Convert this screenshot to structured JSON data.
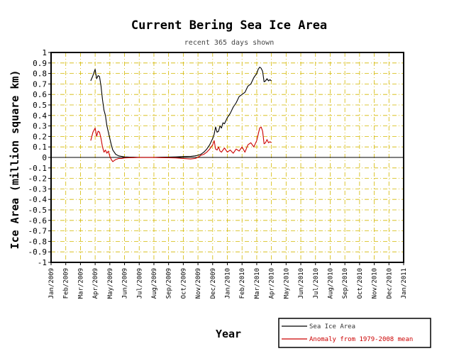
{
  "chart_data": {
    "type": "line",
    "title": "Current Bering Sea Ice Area",
    "subtitle": "recent 365 days shown",
    "xlabel": "Year",
    "ylabel": "Ice Area (million square km)",
    "ylim": [
      -1,
      1
    ],
    "y_ticks": [
      "1",
      "0.9",
      "0.8",
      "0.7",
      "0.6",
      "0.5",
      "0.4",
      "0.3",
      "0.2",
      "0.1",
      "0",
      "-0.1",
      "-0.2",
      "-0.3",
      "-0.4",
      "-0.5",
      "-0.6",
      "-0.7",
      "-0.8",
      "-0.9",
      "-1"
    ],
    "x_range_months": [
      0,
      24
    ],
    "x_ticks": [
      "Jan/2009",
      "Feb/2009",
      "Mar/2009",
      "Apr/2009",
      "May/2009",
      "Jun/2009",
      "Jul/2009",
      "Aug/2009",
      "Sep/2009",
      "Oct/2009",
      "Nov/2009",
      "Dec/2009",
      "Jan/2010",
      "Feb/2010",
      "Mar/2010",
      "Apr/2010",
      "May/2010",
      "Jun/2010",
      "Jul/2010",
      "Aug/2010",
      "Sep/2010",
      "Oct/2010",
      "Nov/2010",
      "Dec/2010",
      "Jan/2011"
    ],
    "grid": true,
    "colors": {
      "ice": "#000000",
      "anomaly": "#cc0000",
      "grid": "#d4b800",
      "zero": "#000000"
    },
    "series": [
      {
        "name": "Sea Ice Area",
        "color": "#000000",
        "x": [
          2.7,
          2.85,
          3.0,
          3.1,
          3.2,
          3.3,
          3.4,
          3.5,
          3.6,
          3.7,
          3.8,
          3.9,
          4.0,
          4.1,
          4.2,
          4.4,
          4.6,
          4.8,
          5.0,
          5.3,
          5.6,
          6.0,
          6.5,
          7.0,
          7.5,
          8.0,
          8.5,
          9.0,
          9.5,
          9.8,
          10.0,
          10.2,
          10.4,
          10.6,
          10.8,
          11.0,
          11.1,
          11.2,
          11.3,
          11.4,
          11.5,
          11.6,
          11.7,
          11.8,
          12.0,
          12.2,
          12.4,
          12.6,
          12.8,
          13.0,
          13.2,
          13.4,
          13.6,
          13.8,
          14.0,
          14.1,
          14.2,
          14.3,
          14.4,
          14.5,
          14.6,
          14.7,
          14.8,
          14.9,
          15.0
        ],
        "values": [
          0.73,
          0.78,
          0.84,
          0.75,
          0.78,
          0.77,
          0.68,
          0.55,
          0.45,
          0.4,
          0.3,
          0.24,
          0.18,
          0.12,
          0.07,
          0.03,
          0.015,
          0.01,
          0.005,
          0.003,
          0.002,
          0.001,
          0.001,
          0.001,
          0.002,
          0.003,
          0.005,
          0.008,
          0.01,
          0.015,
          0.02,
          0.03,
          0.05,
          0.08,
          0.12,
          0.18,
          0.22,
          0.29,
          0.24,
          0.25,
          0.3,
          0.28,
          0.33,
          0.32,
          0.38,
          0.42,
          0.48,
          0.52,
          0.58,
          0.6,
          0.62,
          0.68,
          0.7,
          0.76,
          0.8,
          0.84,
          0.86,
          0.85,
          0.82,
          0.72,
          0.73,
          0.75,
          0.73,
          0.74,
          0.73
        ]
      },
      {
        "name": "Anomaly from 1979-2008 mean",
        "color": "#cc0000",
        "x": [
          2.7,
          2.85,
          3.0,
          3.1,
          3.2,
          3.3,
          3.4,
          3.5,
          3.6,
          3.7,
          3.8,
          3.9,
          4.0,
          4.1,
          4.2,
          4.3,
          4.4,
          4.6,
          4.8,
          5.0,
          5.3,
          5.6,
          6.0,
          6.5,
          7.0,
          7.5,
          8.0,
          8.5,
          9.0,
          9.5,
          9.8,
          10.0,
          10.2,
          10.4,
          10.6,
          10.8,
          11.0,
          11.1,
          11.2,
          11.3,
          11.4,
          11.5,
          11.6,
          11.8,
          12.0,
          12.2,
          12.4,
          12.6,
          12.8,
          13.0,
          13.2,
          13.4,
          13.6,
          13.8,
          14.0,
          14.1,
          14.2,
          14.3,
          14.4,
          14.5,
          14.6,
          14.7,
          14.8,
          14.9,
          15.0
        ],
        "values": [
          0.16,
          0.24,
          0.28,
          0.2,
          0.25,
          0.24,
          0.18,
          0.1,
          0.05,
          0.07,
          0.04,
          0.06,
          0.01,
          -0.02,
          -0.04,
          -0.03,
          -0.02,
          -0.01,
          -0.01,
          -0.005,
          -0.003,
          -0.002,
          -0.001,
          -0.001,
          -0.001,
          -0.002,
          -0.003,
          -0.005,
          -0.01,
          -0.015,
          -0.01,
          0.0,
          0.02,
          0.03,
          0.05,
          0.08,
          0.12,
          0.16,
          0.08,
          0.07,
          0.1,
          0.06,
          0.05,
          0.09,
          0.05,
          0.07,
          0.04,
          0.08,
          0.06,
          0.1,
          0.05,
          0.12,
          0.14,
          0.1,
          0.16,
          0.22,
          0.28,
          0.29,
          0.25,
          0.13,
          0.14,
          0.17,
          0.14,
          0.15,
          0.14
        ]
      }
    ],
    "legend": [
      "Sea Ice Area",
      "Anomaly from 1979-2008 mean"
    ]
  }
}
